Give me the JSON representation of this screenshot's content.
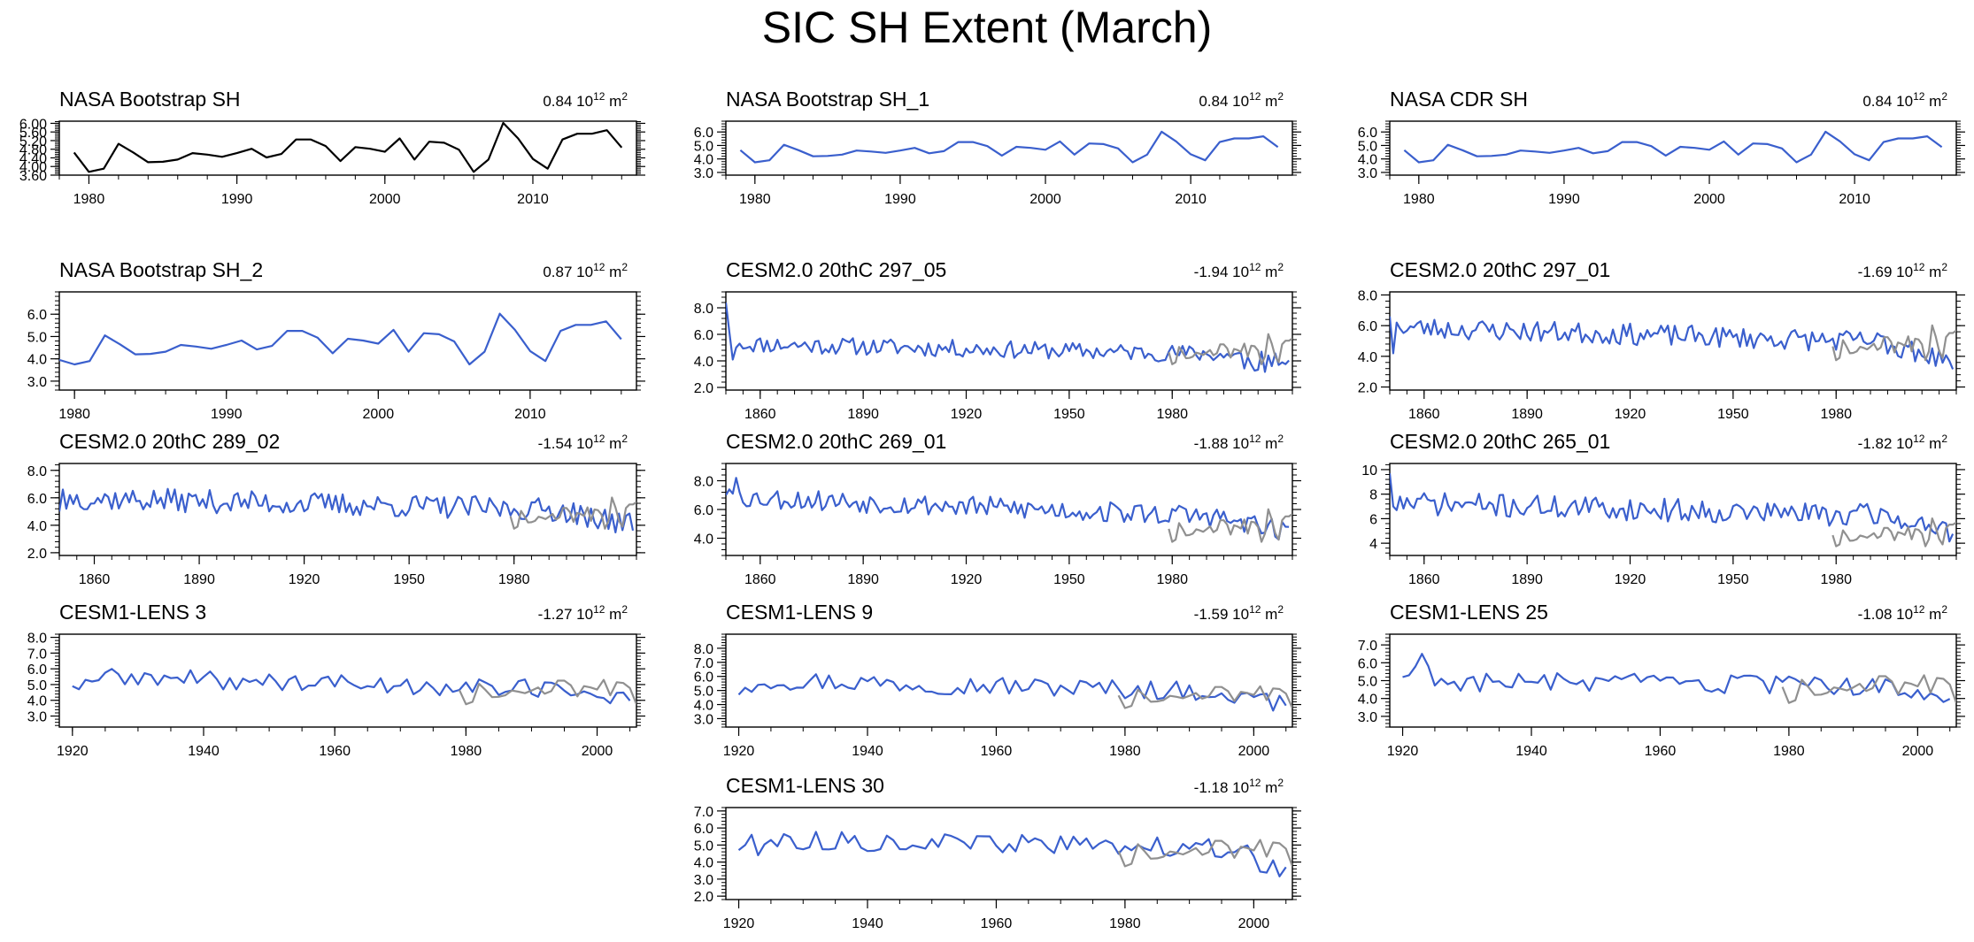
{
  "title": "SIC SH Extent (March)",
  "colors": {
    "obs": "#000000",
    "model": "#3a5fcd",
    "obs_overlay": "#909090"
  },
  "unit_base": "10",
  "unit_exp": "12",
  "unit_m": "m",
  "unit_m_exp": "2",
  "chart_data": [
    {
      "type": "line",
      "title": "NASA Bootstrap SH",
      "trend": "0.84",
      "x_start": 1979,
      "xlim": [
        1978,
        2017
      ],
      "xticks": [
        1980,
        1990,
        2000,
        2010
      ],
      "ylim": [
        3.6,
        6.1
      ],
      "yticks": [
        3.6,
        4.0,
        4.4,
        4.8,
        5.2,
        5.6,
        6.0
      ],
      "ytick_labels": [
        "3.60",
        "4.00",
        "4.40",
        "4.80",
        "5.20",
        "5.60",
        "6.00"
      ],
      "series": [
        {
          "name": "NASA Bootstrap SH",
          "role": "obs",
          "values": [
            4.65,
            3.75,
            3.9,
            5.05,
            4.65,
            4.2,
            4.22,
            4.32,
            4.62,
            4.55,
            4.45,
            4.62,
            4.82,
            4.42,
            4.58,
            5.25,
            5.25,
            4.95,
            4.25,
            4.9,
            4.82,
            4.68,
            5.3,
            4.32,
            5.15,
            5.1,
            4.78,
            3.75,
            4.32,
            6.02,
            5.3,
            4.35,
            3.9,
            5.25,
            5.52,
            5.52,
            5.68,
            4.88
          ]
        }
      ]
    },
    {
      "type": "line",
      "title": "NASA Bootstrap SH_1",
      "trend": "0.84",
      "x_start": 1979,
      "xlim": [
        1978,
        2017
      ],
      "xticks": [
        1980,
        1990,
        2000,
        2010
      ],
      "ylim": [
        2.8,
        6.8
      ],
      "yticks": [
        3.0,
        4.0,
        5.0,
        6.0
      ],
      "ytick_labels": [
        "3.0",
        "4.0",
        "5.0",
        "6.0"
      ],
      "series": [
        {
          "name": "NASA Bootstrap SH_1",
          "role": "model",
          "values": [
            4.65,
            3.75,
            3.9,
            5.05,
            4.65,
            4.2,
            4.22,
            4.32,
            4.62,
            4.55,
            4.45,
            4.62,
            4.82,
            4.42,
            4.58,
            5.25,
            5.25,
            4.95,
            4.25,
            4.9,
            4.82,
            4.68,
            5.3,
            4.32,
            5.15,
            5.1,
            4.78,
            3.75,
            4.32,
            6.02,
            5.3,
            4.35,
            3.9,
            5.25,
            5.52,
            5.52,
            5.68,
            4.88
          ]
        }
      ]
    },
    {
      "type": "line",
      "title": "NASA CDR SH",
      "trend": "0.84",
      "x_start": 1979,
      "xlim": [
        1978,
        2017
      ],
      "xticks": [
        1980,
        1990,
        2000,
        2010
      ],
      "ylim": [
        2.8,
        6.8
      ],
      "yticks": [
        3.0,
        4.0,
        5.0,
        6.0
      ],
      "ytick_labels": [
        "3.0",
        "4.0",
        "5.0",
        "6.0"
      ],
      "series": [
        {
          "name": "NASA CDR SH",
          "role": "model",
          "values": [
            4.65,
            3.75,
            3.9,
            5.05,
            4.65,
            4.2,
            4.22,
            4.32,
            4.62,
            4.55,
            4.45,
            4.62,
            4.82,
            4.42,
            4.58,
            5.25,
            5.25,
            4.95,
            4.25,
            4.9,
            4.82,
            4.68,
            5.3,
            4.32,
            5.15,
            5.1,
            4.78,
            3.75,
            4.32,
            6.02,
            5.3,
            4.35,
            3.9,
            5.25,
            5.52,
            5.52,
            5.68,
            4.88
          ]
        }
      ]
    },
    {
      "type": "line",
      "title": "NASA Bootstrap SH_2",
      "trend": "0.87",
      "x_start": 1978,
      "xlim": [
        1979,
        2017
      ],
      "xticks": [
        1980,
        1990,
        2000,
        2010
      ],
      "ylim": [
        2.6,
        7.0
      ],
      "yticks": [
        3.0,
        4.0,
        5.0,
        6.0
      ],
      "ytick_labels": [
        "3.0",
        "4.0",
        "5.0",
        "6.0"
      ],
      "series": [
        {
          "name": "NASA Bootstrap SH_2",
          "role": "model",
          "values": [
            4.3,
            3.95,
            3.75,
            3.9,
            5.05,
            4.65,
            4.2,
            4.22,
            4.32,
            4.62,
            4.55,
            4.45,
            4.62,
            4.82,
            4.42,
            4.58,
            5.25,
            5.25,
            4.95,
            4.25,
            4.9,
            4.82,
            4.68,
            5.3,
            4.32,
            5.15,
            5.1,
            4.78,
            3.75,
            4.32,
            6.02,
            5.3,
            4.35,
            3.9,
            5.25,
            5.52,
            5.52,
            5.68,
            4.88
          ]
        }
      ]
    },
    {
      "type": "line",
      "title": "CESM2.0 20thC 297_05",
      "trend": "-1.94",
      "x_start": 1850,
      "xlim": [
        1850,
        2015
      ],
      "xticks": [
        1860,
        1890,
        1920,
        1950,
        1980
      ],
      "ylim": [
        1.8,
        9.2
      ],
      "yticks": [
        2.0,
        4.0,
        6.0,
        8.0
      ],
      "ytick_labels": [
        "2.0",
        "4.0",
        "6.0",
        "8.0"
      ],
      "series": [
        {
          "name": "CESM2.0 20thC 297_05",
          "role": "model",
          "seed": 11,
          "start": 1850,
          "end": 2014,
          "head": [
            8.4,
            6.2,
            4.1,
            5.0,
            5.3
          ],
          "base_start": 5.3,
          "base_end": 4.4,
          "amp": 0.65,
          "tail_drop": 0.9,
          "tail_amp": 0.85
        },
        {
          "name": "Observed",
          "role": "obs_overlay",
          "start": 1979,
          "offset": 0
        }
      ]
    },
    {
      "type": "line",
      "title": "CESM2.0 20thC 297_01",
      "trend": "-1.69",
      "x_start": 1850,
      "xlim": [
        1850,
        2015
      ],
      "xticks": [
        1860,
        1890,
        1920,
        1950,
        1980
      ],
      "ylim": [
        1.8,
        8.2
      ],
      "yticks": [
        2.0,
        4.0,
        6.0,
        8.0
      ],
      "ytick_labels": [
        "2.0",
        "4.0",
        "6.0",
        "8.0"
      ],
      "series": [
        {
          "name": "CESM2.0 20thC 297_01",
          "role": "model",
          "seed": 23,
          "start": 1850,
          "end": 2014,
          "head": [
            6.6,
            4.2,
            6.2,
            5.8
          ],
          "base_start": 5.9,
          "base_end": 4.8,
          "amp": 0.7,
          "tail_drop": 1.2,
          "tail_amp": 0.7
        },
        {
          "name": "Observed",
          "role": "obs_overlay",
          "start": 1979,
          "offset": 0
        }
      ]
    },
    {
      "type": "line",
      "title": "CESM2.0 20thC 289_02",
      "trend": "-1.54",
      "x_start": 1850,
      "xlim": [
        1850,
        2015
      ],
      "xticks": [
        1860,
        1890,
        1920,
        1950,
        1980
      ],
      "ylim": [
        1.8,
        8.5
      ],
      "yticks": [
        2.0,
        4.0,
        6.0,
        8.0
      ],
      "ytick_labels": [
        "2.0",
        "4.0",
        "6.0",
        "8.0"
      ],
      "series": [
        {
          "name": "CESM2.0 20thC 289_02",
          "role": "model",
          "seed": 37,
          "start": 1850,
          "end": 2014,
          "head": [
            5.0,
            6.6,
            5.2,
            6.2
          ],
          "base_start": 6.0,
          "base_end": 5.0,
          "amp": 0.85,
          "tail_drop": 1.0,
          "tail_amp": 0.85
        },
        {
          "name": "Observed",
          "role": "obs_overlay",
          "start": 1979,
          "offset": 0
        }
      ]
    },
    {
      "type": "line",
      "title": "CESM2.0 20thC 269_01",
      "trend": "-1.88",
      "x_start": 1850,
      "xlim": [
        1850,
        2015
      ],
      "xticks": [
        1860,
        1890,
        1920,
        1950,
        1980
      ],
      "ylim": [
        2.8,
        9.2
      ],
      "yticks": [
        4.0,
        6.0,
        8.0
      ],
      "ytick_labels": [
        "4.0",
        "6.0",
        "8.0"
      ],
      "series": [
        {
          "name": "CESM2.0 20thC 269_01",
          "role": "model",
          "seed": 53,
          "start": 1850,
          "end": 2014,
          "head": [
            7.0,
            7.4,
            7.1,
            8.2,
            7.2
          ],
          "base_start": 6.9,
          "base_end": 5.3,
          "amp": 0.75,
          "tail_drop": 0.9,
          "tail_amp": 0.7
        },
        {
          "name": "Observed",
          "role": "obs_overlay",
          "start": 1979,
          "offset": 0
        }
      ]
    },
    {
      "type": "line",
      "title": "CESM2.0 20thC 265_01",
      "trend": "-1.82",
      "x_start": 1850,
      "xlim": [
        1850,
        2015
      ],
      "xticks": [
        1860,
        1890,
        1920,
        1950,
        1980
      ],
      "ylim": [
        3.0,
        10.5
      ],
      "yticks": [
        4,
        6,
        8,
        10
      ],
      "ytick_labels": [
        "4",
        "6",
        "8",
        "10"
      ],
      "series": [
        {
          "name": "CESM2.0 20thC 265_01",
          "role": "model",
          "seed": 71,
          "start": 1850,
          "end": 2014,
          "head": [
            9.7,
            7.0,
            6.7,
            7.8
          ],
          "base_start": 7.3,
          "base_end": 6.1,
          "amp": 0.95,
          "tail_drop": 1.4,
          "tail_amp": 0.8
        },
        {
          "name": "Observed",
          "role": "obs_overlay",
          "start": 1979,
          "offset": 0
        }
      ]
    },
    {
      "type": "line",
      "title": "CESM1-LENS 3",
      "trend": "-1.27",
      "x_start": 1920,
      "xlim": [
        1918,
        2006
      ],
      "xticks": [
        1920,
        1940,
        1960,
        1980,
        2000
      ],
      "ylim": [
        2.3,
        8.2
      ],
      "yticks": [
        3.0,
        4.0,
        5.0,
        6.0,
        7.0,
        8.0
      ],
      "ytick_labels": [
        "3.0",
        "4.0",
        "5.0",
        "6.0",
        "7.0",
        "8.0"
      ],
      "series": [
        {
          "name": "CESM1-LENS 3",
          "role": "model",
          "seed": 89,
          "start": 1920,
          "end": 2005,
          "head": [
            4.9,
            4.7,
            5.3
          ],
          "base_start": 5.5,
          "base_end": 4.6,
          "amp": 0.6,
          "tail_drop": 0.6,
          "tail_amp": 0.6
        },
        {
          "name": "Observed",
          "role": "obs_overlay",
          "start": 1979,
          "offset": 0
        }
      ]
    },
    {
      "type": "line",
      "title": "CESM1-LENS 9",
      "trend": "-1.59",
      "x_start": 1920,
      "xlim": [
        1918,
        2006
      ],
      "xticks": [
        1920,
        1940,
        1960,
        1980,
        2000
      ],
      "ylim": [
        2.4,
        9.0
      ],
      "yticks": [
        3.0,
        4.0,
        5.0,
        6.0,
        7.0,
        8.0
      ],
      "ytick_labels": [
        "3.0",
        "4.0",
        "5.0",
        "6.0",
        "7.0",
        "8.0"
      ],
      "series": [
        {
          "name": "CESM1-LENS 9",
          "role": "model",
          "seed": 97,
          "start": 1920,
          "end": 2005,
          "head": [
            4.7,
            5.2,
            4.9,
            5.4
          ],
          "base_start": 5.8,
          "base_end": 4.8,
          "amp": 0.7,
          "tail_drop": 0.9,
          "tail_amp": 0.6
        },
        {
          "name": "Observed",
          "role": "obs_overlay",
          "start": 1979,
          "offset": 0
        }
      ]
    },
    {
      "type": "line",
      "title": "CESM1-LENS 25",
      "trend": "-1.08",
      "x_start": 1920,
      "xlim": [
        1918,
        2006
      ],
      "xticks": [
        1920,
        1940,
        1960,
        1980,
        2000
      ],
      "ylim": [
        2.4,
        7.6
      ],
      "yticks": [
        3.0,
        4.0,
        5.0,
        6.0,
        7.0
      ],
      "ytick_labels": [
        "3.0",
        "4.0",
        "5.0",
        "6.0",
        "7.0"
      ],
      "series": [
        {
          "name": "CESM1-LENS 25",
          "role": "model",
          "seed": 103,
          "start": 1920,
          "end": 2005,
          "head": [
            5.2,
            5.3,
            5.8,
            6.5,
            5.8
          ],
          "base_start": 5.0,
          "base_end": 4.6,
          "amp": 0.55,
          "tail_drop": 0.6,
          "tail_amp": 0.55
        },
        {
          "name": "Observed",
          "role": "obs_overlay",
          "start": 1979,
          "offset": 0
        }
      ]
    },
    {
      "type": "line",
      "title": "CESM1-LENS 30",
      "trend": "-1.18",
      "x_start": 1920,
      "xlim": [
        1918,
        2006
      ],
      "xticks": [
        1920,
        1940,
        1960,
        1980,
        2000
      ],
      "ylim": [
        1.8,
        7.2
      ],
      "yticks": [
        2.0,
        3.0,
        4.0,
        5.0,
        6.0,
        7.0
      ],
      "ytick_labels": [
        "2.0",
        "3.0",
        "4.0",
        "5.0",
        "6.0",
        "7.0"
      ],
      "series": [
        {
          "name": "CESM1-LENS 30",
          "role": "model",
          "seed": 113,
          "start": 1920,
          "end": 2005,
          "head": [
            4.7,
            5.0,
            5.6,
            4.4
          ],
          "base_start": 5.3,
          "base_end": 4.8,
          "amp": 0.55,
          "tail_drop": 1.4,
          "tail_amp": 0.7
        },
        {
          "name": "Observed",
          "role": "obs_overlay",
          "start": 1979,
          "offset": 0
        }
      ]
    }
  ]
}
